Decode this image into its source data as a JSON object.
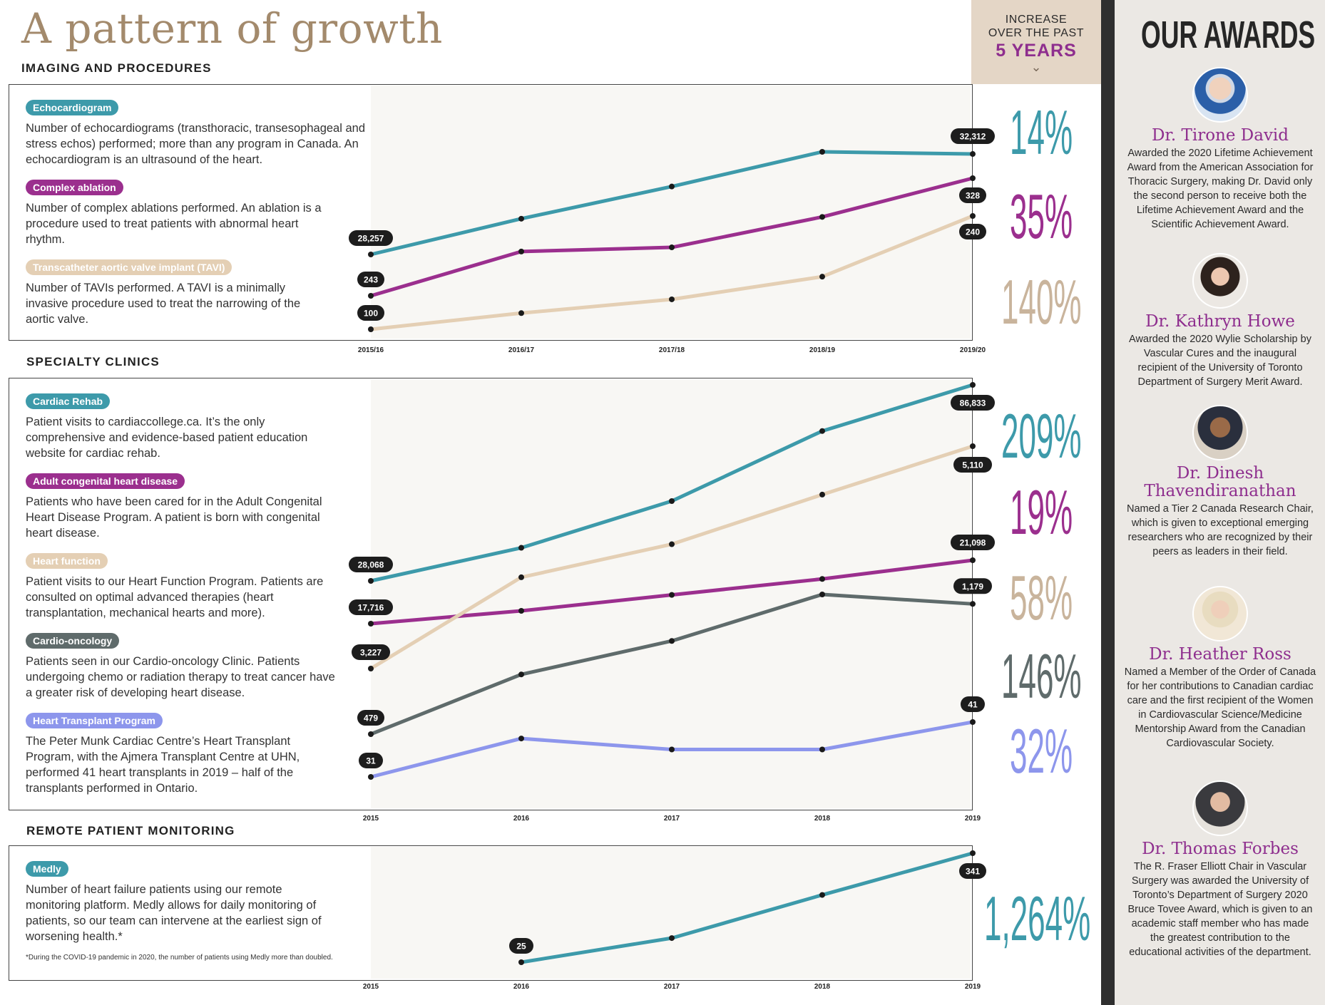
{
  "title": "A pattern of growth",
  "increase_header": {
    "line1": "INCREASE",
    "line2": "OVER THE PAST",
    "strong": "5 YEARS"
  },
  "colors": {
    "teal": "#3d9aaa",
    "magenta": "#9b2f8e",
    "tan": "#e4cfb4",
    "slate": "#5f6b6b",
    "periwinkle": "#8d96ec",
    "title_brown": "#a38a6c",
    "award_purple": "#8e2e8e"
  },
  "sections": [
    {
      "title": "IMAGING AND PROCEDURES",
      "items": [
        {
          "tag": "Echocardiogram",
          "color": "#3d9aaa",
          "desc": "Number of echocardiograms (transthoracic, transesophageal and stress echos) performed; more than any program in Canada. An echocardiogram is an ultrasound of the heart."
        },
        {
          "tag": "Complex ablation",
          "color": "#9b2f8e",
          "desc": "Number of complex ablations performed. An ablation is a procedure used to treat patients with abnormal heart rhythm."
        },
        {
          "tag": "Transcatheter aortic valve implant (TAVI)",
          "color": "#e4cfb4",
          "desc": "Number of TAVIs performed. A TAVI is a minimally invasive procedure used to treat the narrowing of the aortic valve."
        }
      ]
    },
    {
      "title": "SPECIALTY CLINICS",
      "items": [
        {
          "tag": "Cardiac Rehab",
          "color": "#3d9aaa",
          "desc": "Patient visits to cardiaccollege.ca. It’s the only comprehensive and evidence-based patient education website for cardiac rehab."
        },
        {
          "tag": "Adult congenital heart disease",
          "color": "#9b2f8e",
          "desc": "Patients who have been cared for in the Adult Congenital Heart Disease Program. A patient is born with congenital heart disease."
        },
        {
          "tag": "Heart function",
          "color": "#e4cfb4",
          "desc": "Patient visits to our Heart Function Program. Patients are consulted on optimal advanced therapies (heart transplantation, mechanical hearts and more)."
        },
        {
          "tag": "Cardio-oncology",
          "color": "#5f6b6b",
          "desc": "Patients seen in our Cardio-oncology Clinic. Patients undergoing chemo or radiation therapy to treat cancer have a greater risk of developing heart disease."
        },
        {
          "tag": "Heart Transplant Program",
          "color": "#8d96ec",
          "desc": "The Peter Munk Cardiac Centre’s Heart Transplant Program, with the Ajmera Transplant Centre at UHN, performed 41 heart transplants in 2019 – half of the transplants performed in Ontario."
        }
      ]
    },
    {
      "title": "REMOTE PATIENT MONITORING",
      "items": [
        {
          "tag": "Medly",
          "color": "#3d9aaa",
          "desc": "Number of heart failure patients using our remote monitoring platform. Medly allows for daily monitoring of patients, so our team can intervene at the earliest sign of worsening health.*"
        }
      ],
      "footnote": "*During the COVID-19 pandemic in 2020, the number of patients using Medly more than doubled."
    }
  ],
  "chart_data": [
    {
      "type": "line",
      "title": "IMAGING AND PROCEDURES",
      "x": [
        "2015/16",
        "2016/17",
        "2017/18",
        "2018/19",
        "2019/20"
      ],
      "series": [
        {
          "name": "Echocardiogram",
          "color": "#3d9aaa",
          "values": [
            28257,
            29700,
            31000,
            32400,
            32312
          ],
          "labels": [
            "28,257",
            null,
            null,
            null,
            "32,312"
          ],
          "increase": "14%"
        },
        {
          "name": "Complex ablation",
          "color": "#9b2f8e",
          "values": [
            243,
            275,
            278,
            300,
            328
          ],
          "labels": [
            "243",
            null,
            null,
            null,
            "328"
          ],
          "increase": "35%"
        },
        {
          "name": "TAVI",
          "color": "#e4cfb4",
          "values": [
            100,
            120,
            137,
            165,
            240
          ],
          "labels": [
            "100",
            null,
            null,
            null,
            "240"
          ],
          "increase": "140%"
        }
      ]
    },
    {
      "type": "line",
      "title": "SPECIALTY CLINICS",
      "x": [
        "2015",
        "2016",
        "2017",
        "2018",
        "2019"
      ],
      "series": [
        {
          "name": "Cardiac Rehab",
          "color": "#3d9aaa",
          "values": [
            28068,
            38000,
            52000,
            73000,
            86833
          ],
          "labels": [
            "28,068",
            null,
            null,
            null,
            "86,833"
          ],
          "increase": "209%"
        },
        {
          "name": "Adult congenital heart disease",
          "color": "#9b2f8e",
          "values": [
            17716,
            18400,
            19250,
            20100,
            21098
          ],
          "labels": [
            "17,716",
            null,
            null,
            null,
            "21,098"
          ],
          "increase": "19%"
        },
        {
          "name": "Heart function",
          "color": "#e4cfb4",
          "values": [
            3227,
            4000,
            4280,
            4700,
            5110
          ],
          "labels": [
            "3,227",
            null,
            null,
            null,
            "5,110"
          ],
          "increase": "58%"
        },
        {
          "name": "Cardio-oncology",
          "color": "#5f6b6b",
          "values": [
            479,
            800,
            980,
            1230,
            1179
          ],
          "labels": [
            "479",
            null,
            null,
            null,
            "1,179"
          ],
          "increase": "146%"
        },
        {
          "name": "Heart Transplant Program",
          "color": "#8d96ec",
          "values": [
            31,
            38,
            36,
            36,
            41
          ],
          "labels": [
            "31",
            null,
            null,
            null,
            "41"
          ],
          "increase": "32%"
        }
      ]
    },
    {
      "type": "line",
      "title": "REMOTE PATIENT MONITORING",
      "x": [
        "2015",
        "2016",
        "2017",
        "2018",
        "2019"
      ],
      "series": [
        {
          "name": "Medly",
          "color": "#3d9aaa",
          "values": [
            null,
            25,
            95,
            220,
            341
          ],
          "labels": [
            null,
            "25",
            null,
            null,
            "341"
          ],
          "increase": "1,264%"
        }
      ]
    }
  ],
  "awards": {
    "title": "OUR AWARDS",
    "people": [
      {
        "name": "Dr. Tirone David",
        "desc": "Awarded the 2020 Lifetime Achievement Award from the American Association for Thoracic Surgery, making Dr. David only the second person to receive both the Lifetime Achievement Award and the Scientific Achievement Award."
      },
      {
        "name": "Dr. Kathryn Howe",
        "desc": "Awarded the 2020 Wylie Scholarship by Vascular Cures and the inaugural recipient of the University of Toronto Department of Surgery Merit Award."
      },
      {
        "name": "Dr. Dinesh Thavendiranathan",
        "desc": "Named a Tier 2 Canada Research Chair, which is given to exceptional emerging researchers who are recognized by their peers as leaders in their field."
      },
      {
        "name": "Dr. Heather Ross",
        "desc": "Named a Member of the Order of Canada for her contributions to Canadian cardiac care and the first recipient of the Women in Cardiovascular Science/Medicine Mentorship Award from the Canadian Cardiovascular Society."
      },
      {
        "name": "Dr. Thomas Forbes",
        "desc": "The R. Fraser Elliott Chair in Vascular Surgery was awarded the University of Toronto’s Department of Surgery 2020 Bruce Tovee Award, which is given to an academic staff member who has made the greatest contribution to the educational activities of the department."
      }
    ]
  }
}
